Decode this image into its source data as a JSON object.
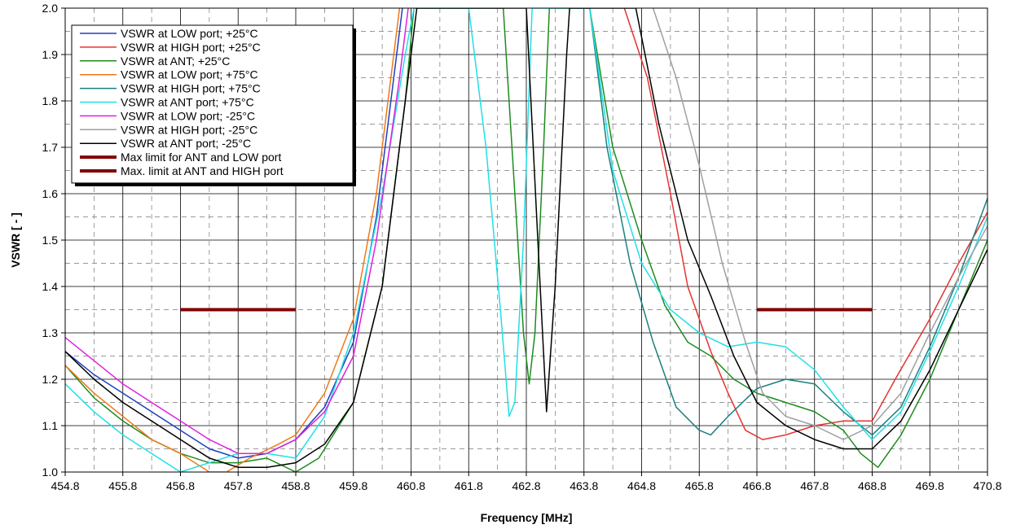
{
  "chart_data": {
    "type": "line",
    "title": "",
    "xlabel": "Frequency [MHz]",
    "ylabel": "VSWR [ - ]",
    "xlim": [
      454.8,
      470.8
    ],
    "ylim": [
      1.0,
      2.0
    ],
    "x_ticks": [
      "454.8",
      "455.8",
      "456.8",
      "457.8",
      "458.8",
      "459.8",
      "460.8",
      "461.8",
      "462.8",
      "463.8",
      "464.8",
      "465.8",
      "466.8",
      "467.8",
      "468.8",
      "469.8",
      "470.8"
    ],
    "y_ticks": [
      "1.0",
      "1.1",
      "1.2",
      "1.3",
      "1.4",
      "1.5",
      "1.6",
      "1.7",
      "1.8",
      "1.9",
      "2.0"
    ],
    "grid": true,
    "legend_position": "top-left",
    "series": [
      {
        "name": "VSWR at LOW port; +25°C",
        "color": "#1f3fbf",
        "points": [
          [
            454.8,
            1.26
          ],
          [
            455.3,
            1.21
          ],
          [
            455.8,
            1.17
          ],
          [
            456.3,
            1.13
          ],
          [
            456.8,
            1.09
          ],
          [
            457.3,
            1.05
          ],
          [
            457.8,
            1.03
          ],
          [
            458.3,
            1.04
          ],
          [
            458.8,
            1.07
          ],
          [
            459.3,
            1.14
          ],
          [
            459.8,
            1.28
          ],
          [
            460.2,
            1.55
          ],
          [
            460.5,
            1.85
          ],
          [
            460.65,
            2.0
          ]
        ]
      },
      {
        "name": "VSWR at HIGH port; +25°C",
        "color": "#e53333",
        "points": [
          [
            464.5,
            2.0
          ],
          [
            464.9,
            1.85
          ],
          [
            465.3,
            1.6
          ],
          [
            465.6,
            1.4
          ],
          [
            465.8,
            1.33
          ],
          [
            466.0,
            1.26
          ],
          [
            466.3,
            1.17
          ],
          [
            466.6,
            1.09
          ],
          [
            466.9,
            1.07
          ],
          [
            467.3,
            1.08
          ],
          [
            467.8,
            1.1
          ],
          [
            468.3,
            1.11
          ],
          [
            468.8,
            1.11
          ],
          [
            469.2,
            1.2
          ],
          [
            469.8,
            1.33
          ],
          [
            470.3,
            1.45
          ],
          [
            470.8,
            1.56
          ]
        ]
      },
      {
        "name": "VSWR at ANT; +25°C",
        "color": "#1e8b1e",
        "points": [
          [
            454.8,
            1.23
          ],
          [
            455.3,
            1.16
          ],
          [
            455.8,
            1.11
          ],
          [
            456.3,
            1.07
          ],
          [
            456.8,
            1.04
          ],
          [
            457.3,
            1.02
          ],
          [
            457.8,
            1.02
          ],
          [
            458.3,
            1.03
          ],
          [
            458.8,
            1.0
          ],
          [
            459.2,
            1.03
          ],
          [
            459.8,
            1.15
          ],
          [
            460.3,
            1.4
          ],
          [
            460.7,
            1.8
          ],
          [
            460.85,
            2.0
          ],
          [
            462.4,
            2.0
          ],
          [
            462.6,
            1.6
          ],
          [
            462.75,
            1.3
          ],
          [
            462.85,
            1.19
          ],
          [
            462.95,
            1.3
          ],
          [
            463.1,
            1.7
          ],
          [
            463.2,
            2.0
          ],
          [
            463.9,
            2.0
          ],
          [
            464.3,
            1.7
          ],
          [
            464.8,
            1.5
          ],
          [
            465.2,
            1.36
          ],
          [
            465.6,
            1.28
          ],
          [
            466.0,
            1.25
          ],
          [
            466.4,
            1.2
          ],
          [
            466.8,
            1.17
          ],
          [
            467.3,
            1.15
          ],
          [
            467.8,
            1.13
          ],
          [
            468.3,
            1.09
          ],
          [
            468.6,
            1.04
          ],
          [
            468.9,
            1.01
          ],
          [
            469.3,
            1.08
          ],
          [
            469.8,
            1.2
          ],
          [
            470.3,
            1.35
          ],
          [
            470.8,
            1.5
          ]
        ]
      },
      {
        "name": "VSWR at LOW port; +75°C",
        "color": "#f07818",
        "points": [
          [
            454.8,
            1.23
          ],
          [
            455.3,
            1.17
          ],
          [
            455.8,
            1.12
          ],
          [
            456.3,
            1.07
          ],
          [
            456.8,
            1.04
          ],
          [
            457.3,
            1.0
          ],
          [
            457.6,
            1.0
          ],
          [
            458.0,
            1.03
          ],
          [
            458.5,
            1.06
          ],
          [
            458.8,
            1.08
          ],
          [
            459.3,
            1.17
          ],
          [
            459.8,
            1.33
          ],
          [
            460.2,
            1.6
          ],
          [
            460.5,
            1.9
          ],
          [
            460.6,
            2.0
          ]
        ]
      },
      {
        "name": "VSWR at HIGH port; +75°C",
        "color": "#1a8080",
        "points": [
          [
            463.9,
            2.0
          ],
          [
            464.2,
            1.7
          ],
          [
            464.6,
            1.45
          ],
          [
            465.0,
            1.28
          ],
          [
            465.4,
            1.14
          ],
          [
            465.8,
            1.09
          ],
          [
            466.0,
            1.08
          ],
          [
            466.3,
            1.12
          ],
          [
            466.8,
            1.18
          ],
          [
            467.3,
            1.2
          ],
          [
            467.8,
            1.19
          ],
          [
            468.3,
            1.13
          ],
          [
            468.8,
            1.08
          ],
          [
            469.3,
            1.14
          ],
          [
            469.8,
            1.27
          ],
          [
            470.3,
            1.42
          ],
          [
            470.8,
            1.59
          ]
        ]
      },
      {
        "name": "VSWR at ANT port; +75°C",
        "color": "#20e0e8",
        "points": [
          [
            454.8,
            1.19
          ],
          [
            455.3,
            1.13
          ],
          [
            455.8,
            1.08
          ],
          [
            456.3,
            1.04
          ],
          [
            456.8,
            1.0
          ],
          [
            457.3,
            1.02
          ],
          [
            457.8,
            1.04
          ],
          [
            458.3,
            1.04
          ],
          [
            458.8,
            1.03
          ],
          [
            459.3,
            1.12
          ],
          [
            459.8,
            1.3
          ],
          [
            460.3,
            1.6
          ],
          [
            460.7,
            1.9
          ],
          [
            460.85,
            2.0
          ],
          [
            461.8,
            2.0
          ],
          [
            462.1,
            1.7
          ],
          [
            462.35,
            1.35
          ],
          [
            462.5,
            1.12
          ],
          [
            462.6,
            1.15
          ],
          [
            462.75,
            1.5
          ],
          [
            462.9,
            2.0
          ],
          [
            463.9,
            2.0
          ],
          [
            464.3,
            1.65
          ],
          [
            464.8,
            1.45
          ],
          [
            465.3,
            1.35
          ],
          [
            465.8,
            1.3
          ],
          [
            466.3,
            1.27
          ],
          [
            466.8,
            1.28
          ],
          [
            467.3,
            1.27
          ],
          [
            467.8,
            1.22
          ],
          [
            468.3,
            1.14
          ],
          [
            468.8,
            1.07
          ],
          [
            469.3,
            1.13
          ],
          [
            469.8,
            1.26
          ],
          [
            470.3,
            1.4
          ],
          [
            470.8,
            1.55
          ]
        ]
      },
      {
        "name": "VSWR at LOW port; -25°C",
        "color": "#e020e0",
        "points": [
          [
            454.8,
            1.29
          ],
          [
            455.3,
            1.24
          ],
          [
            455.8,
            1.19
          ],
          [
            456.3,
            1.15
          ],
          [
            456.8,
            1.11
          ],
          [
            457.3,
            1.07
          ],
          [
            457.8,
            1.04
          ],
          [
            458.3,
            1.04
          ],
          [
            458.8,
            1.07
          ],
          [
            459.3,
            1.13
          ],
          [
            459.8,
            1.25
          ],
          [
            460.2,
            1.5
          ],
          [
            460.6,
            1.85
          ],
          [
            460.75,
            2.0
          ]
        ]
      },
      {
        "name": "VSWR at HIGH port; -25°C",
        "color": "#a0a0a0",
        "points": [
          [
            465.0,
            2.0
          ],
          [
            465.4,
            1.85
          ],
          [
            465.8,
            1.66
          ],
          [
            466.2,
            1.45
          ],
          [
            466.6,
            1.28
          ],
          [
            466.9,
            1.17
          ],
          [
            467.3,
            1.12
          ],
          [
            467.8,
            1.1
          ],
          [
            468.3,
            1.07
          ],
          [
            468.8,
            1.1
          ],
          [
            469.3,
            1.17
          ],
          [
            469.8,
            1.3
          ],
          [
            470.3,
            1.42
          ],
          [
            470.8,
            1.53
          ]
        ]
      },
      {
        "name": "VSWR at ANT port; -25°C",
        "color": "#000000",
        "points": [
          [
            454.8,
            1.26
          ],
          [
            455.3,
            1.2
          ],
          [
            455.8,
            1.15
          ],
          [
            456.3,
            1.11
          ],
          [
            456.8,
            1.07
          ],
          [
            457.3,
            1.03
          ],
          [
            457.8,
            1.01
          ],
          [
            458.3,
            1.01
          ],
          [
            458.8,
            1.02
          ],
          [
            459.3,
            1.06
          ],
          [
            459.8,
            1.15
          ],
          [
            460.3,
            1.4
          ],
          [
            460.7,
            1.8
          ],
          [
            460.9,
            2.0
          ],
          [
            462.8,
            2.0
          ],
          [
            463.0,
            1.5
          ],
          [
            463.15,
            1.13
          ],
          [
            463.3,
            1.4
          ],
          [
            463.5,
            1.9
          ],
          [
            463.55,
            2.0
          ],
          [
            464.7,
            2.0
          ],
          [
            465.1,
            1.75
          ],
          [
            465.6,
            1.5
          ],
          [
            466.0,
            1.38
          ],
          [
            466.4,
            1.25
          ],
          [
            466.8,
            1.15
          ],
          [
            467.3,
            1.1
          ],
          [
            467.8,
            1.07
          ],
          [
            468.3,
            1.05
          ],
          [
            468.8,
            1.05
          ],
          [
            469.3,
            1.11
          ],
          [
            469.8,
            1.22
          ],
          [
            470.3,
            1.35
          ],
          [
            470.8,
            1.48
          ]
        ]
      },
      {
        "name": "Max limit for ANT and LOW port",
        "color": "#800000",
        "points": [
          [
            456.8,
            1.35
          ],
          [
            458.8,
            1.35
          ]
        ]
      },
      {
        "name": "Max. limit at ANT and HIGH port",
        "color": "#800000",
        "points": [
          [
            466.8,
            1.35
          ],
          [
            468.8,
            1.35
          ]
        ]
      }
    ]
  }
}
